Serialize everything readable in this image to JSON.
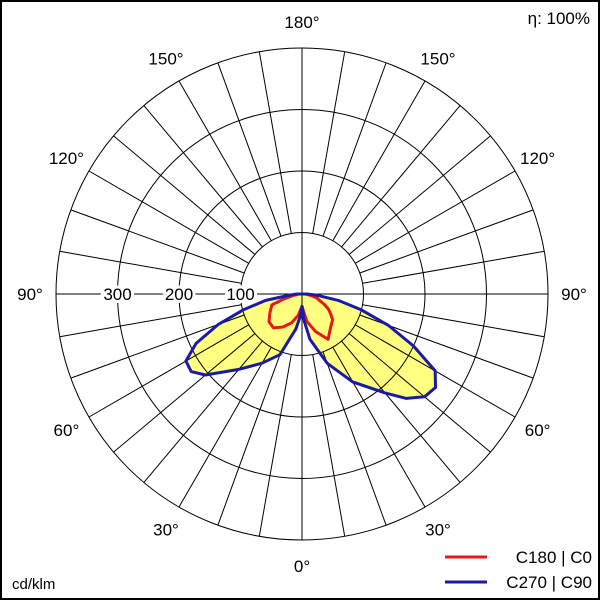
{
  "efficiency": "η: 100%",
  "unit_label": "cd/klm",
  "colors": {
    "c0": "#e31a1c",
    "c90": "#1a1aa6",
    "fill": "#ffff80",
    "grid": "#000000"
  },
  "chart_data": {
    "type": "polar",
    "r_max": 400,
    "ring_values": [
      100,
      200,
      300,
      400
    ],
    "radial_tick_labels": [
      "100",
      "200",
      "300"
    ],
    "angle_labels": [
      "0°",
      "30°",
      "60°",
      "90°",
      "120°",
      "150°",
      "180°",
      "150°",
      "120°",
      "90°",
      "60°",
      "30°"
    ],
    "series": [
      {
        "name": "C180 | C0",
        "color_key": "c0",
        "right": [
          [
            0,
            20
          ],
          [
            10,
            45
          ],
          [
            20,
            65
          ],
          [
            30,
            85
          ],
          [
            40,
            72
          ],
          [
            50,
            65
          ],
          [
            55,
            57
          ],
          [
            60,
            50
          ],
          [
            65,
            40
          ],
          [
            70,
            30
          ],
          [
            75,
            25
          ],
          [
            80,
            15
          ],
          [
            85,
            8
          ],
          [
            90,
            5
          ]
        ],
        "left": [
          [
            0,
            20
          ],
          [
            10,
            35
          ],
          [
            20,
            50
          ],
          [
            30,
            62
          ],
          [
            40,
            72
          ],
          [
            50,
            70
          ],
          [
            60,
            60
          ],
          [
            70,
            52
          ],
          [
            75,
            30
          ],
          [
            80,
            15
          ],
          [
            85,
            8
          ],
          [
            90,
            5
          ]
        ]
      },
      {
        "name": "C270 | C90",
        "color_key": "c90",
        "right": [
          [
            0,
            20
          ],
          [
            5,
            45
          ],
          [
            10,
            75
          ],
          [
            20,
            120
          ],
          [
            30,
            165
          ],
          [
            40,
            210
          ],
          [
            45,
            240
          ],
          [
            50,
            260
          ],
          [
            55,
            265
          ],
          [
            60,
            250
          ],
          [
            65,
            200
          ],
          [
            70,
            150
          ],
          [
            75,
            100
          ],
          [
            80,
            60
          ],
          [
            85,
            25
          ],
          [
            90,
            8
          ]
        ],
        "left": [
          [
            0,
            20
          ],
          [
            5,
            38
          ],
          [
            10,
            58
          ],
          [
            20,
            105
          ],
          [
            30,
            130
          ],
          [
            40,
            160
          ],
          [
            50,
            205
          ],
          [
            55,
            220
          ],
          [
            60,
            218
          ],
          [
            65,
            190
          ],
          [
            70,
            145
          ],
          [
            75,
            98
          ],
          [
            80,
            60
          ],
          [
            85,
            20
          ],
          [
            90,
            8
          ]
        ]
      }
    ]
  }
}
